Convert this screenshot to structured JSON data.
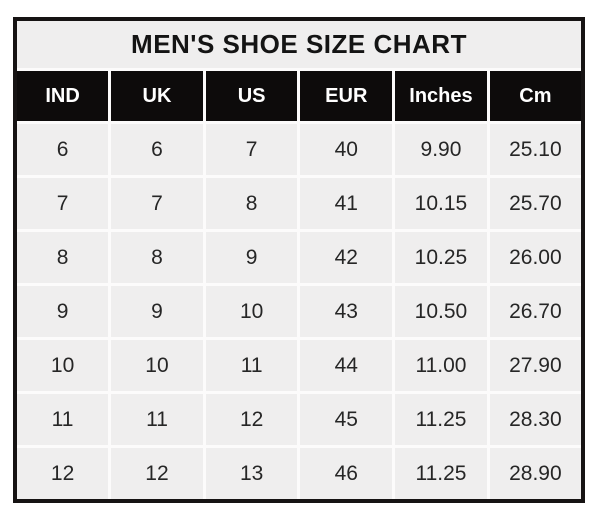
{
  "page": {
    "background": "#ffffff"
  },
  "chart_data": {
    "type": "table",
    "title": "MEN'S SHOE SIZE CHART",
    "columns": [
      "IND",
      "UK",
      "US",
      "EUR",
      "Inches",
      "Cm"
    ],
    "rows": [
      [
        "6",
        "6",
        "7",
        "40",
        "9.90",
        "25.10"
      ],
      [
        "7",
        "7",
        "8",
        "41",
        "10.15",
        "25.70"
      ],
      [
        "8",
        "8",
        "9",
        "42",
        "10.25",
        "26.00"
      ],
      [
        "9",
        "9",
        "10",
        "43",
        "10.50",
        "26.70"
      ],
      [
        "10",
        "10",
        "11",
        "44",
        "11.00",
        "27.90"
      ],
      [
        "11",
        "11",
        "12",
        "45",
        "11.25",
        "28.30"
      ],
      [
        "12",
        "12",
        "13",
        "46",
        "11.25",
        "28.90"
      ]
    ],
    "layout": {
      "legend": "none",
      "grid": "white cell separators",
      "header_position": "top"
    },
    "colors": {
      "outer_border": "#161313",
      "separator": "#fcfbfb",
      "title_bg": "#efeeee",
      "title_text": "#141414",
      "header_bg": "#0d0b0b",
      "header_text": "#ffffff",
      "cell_bg": "#efeeee",
      "cell_text": "#262626"
    }
  }
}
